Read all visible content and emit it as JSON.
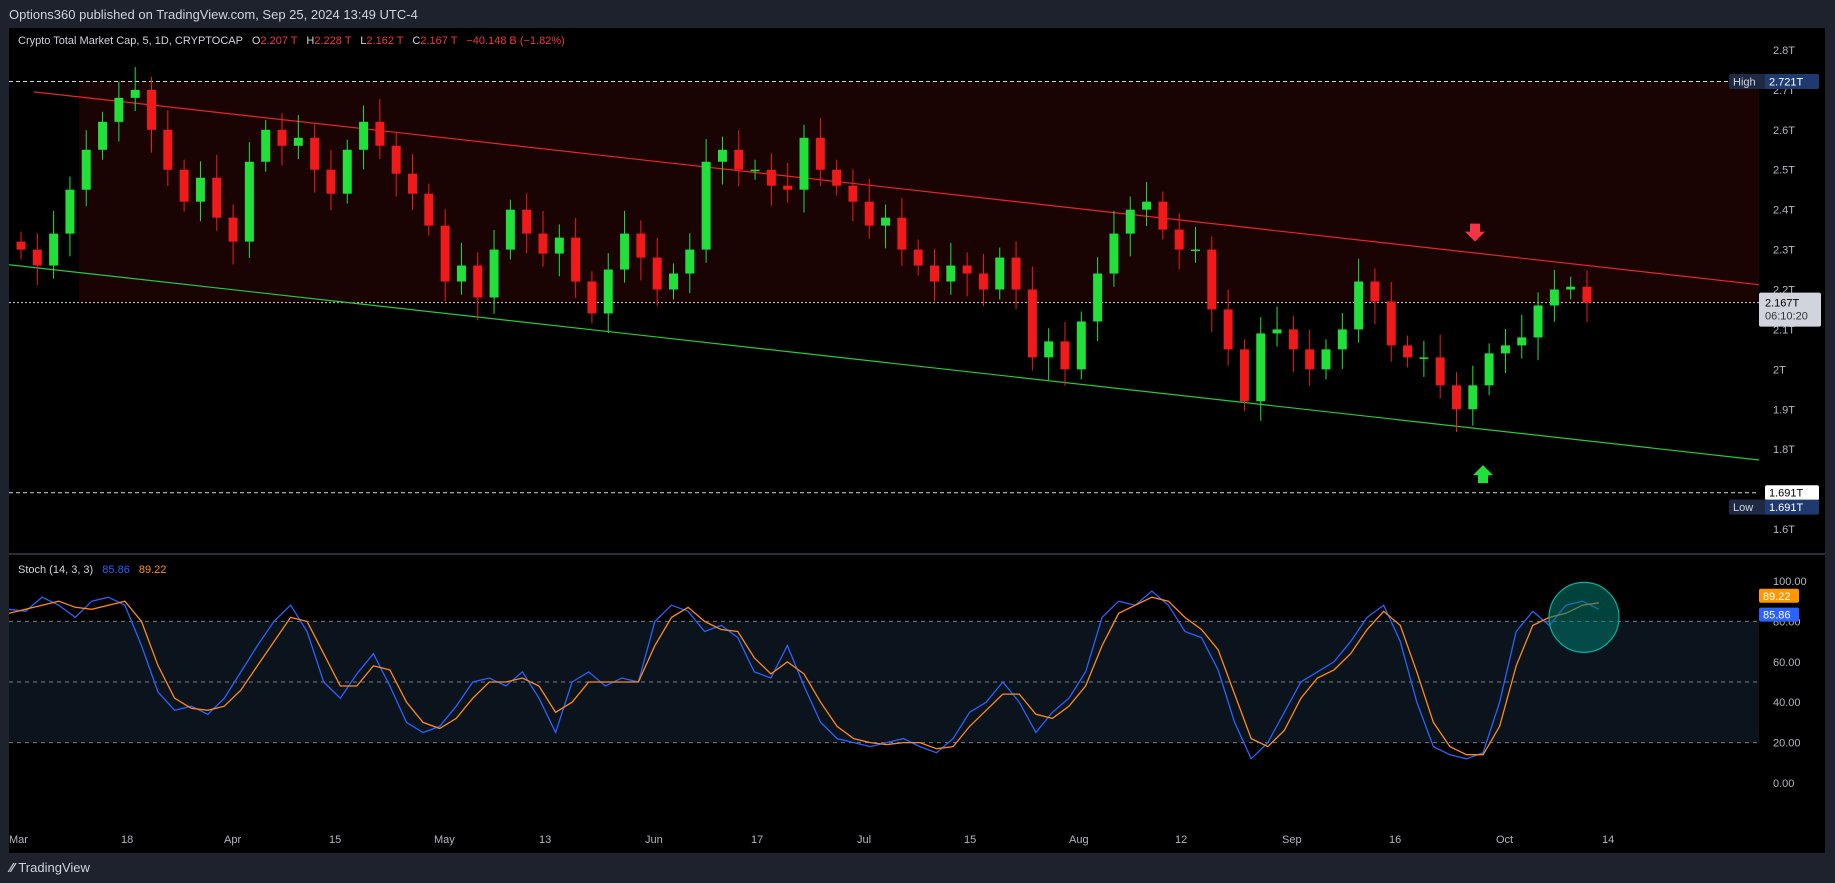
{
  "header": {
    "published": "Options360 published on TradingView.com, Sep 25, 2024 13:49 UTC-4"
  },
  "footer": {
    "brand": "TradingView"
  },
  "legend": {
    "symbol": "Crypto Total Market Cap, 5, 1D, CRYPTOCAP",
    "o_label": "O",
    "o_value": "2.207 T",
    "h_label": "H",
    "h_value": "2.228 T",
    "l_label": "L",
    "l_value": "2.162 T",
    "c_label": "C",
    "c_value": "2.167 T",
    "change": "−40.148 B (−1.82%)"
  },
  "stoch_legend": {
    "name": "Stoch (14, 3, 3)",
    "k": "85.86",
    "d": "89.22"
  },
  "colors": {
    "up": "#22e03a",
    "down": "#f01a1a",
    "channel_top": "#e8252b",
    "channel_bottom": "#27c93a",
    "k_line": "#2962ff",
    "d_line": "#ff8a1a",
    "zone": "#1a0303",
    "stoch_band": "#0b131c"
  },
  "chart_data": [
    {
      "type": "candlestick",
      "title": "Crypto Total Market Cap, 5, 1D, CRYPTOCAP",
      "y_unit": "T",
      "ylim": [
        1.55,
        2.85
      ],
      "y_ticks": [
        "1.6T",
        "1.7T",
        "1.8T",
        "1.9T",
        "2T",
        "2.1T",
        "2.2T",
        "2.3T",
        "2.4T",
        "2.5T",
        "2.6T",
        "2.7T",
        "2.8T"
      ],
      "x_ticks": [
        "Mar",
        "18",
        "Apr",
        "15",
        "May",
        "13",
        "Jun",
        "17",
        "Jul",
        "15",
        "Aug",
        "12",
        "Sep",
        "16",
        "Oct",
        "14"
      ],
      "high": {
        "label": "High",
        "value": "2.721T",
        "y": 2.721
      },
      "low": {
        "label": "Low",
        "value": "1.691T",
        "y": 1.691
      },
      "low_line_label": "1.691T",
      "last_price": {
        "value": "2.167T",
        "countdown": "06:10:20",
        "y": 2.167
      },
      "close_pivots": [
        2.3,
        2.26,
        2.34,
        2.45,
        2.55,
        2.62,
        2.68,
        2.7,
        2.6,
        2.5,
        2.42,
        2.48,
        2.38,
        2.32,
        2.52,
        2.6,
        2.56,
        2.58,
        2.5,
        2.44,
        2.55,
        2.62,
        2.56,
        2.49,
        2.44,
        2.36,
        2.22,
        2.26,
        2.18,
        2.3,
        2.4,
        2.34,
        2.29,
        2.33,
        2.22,
        2.14,
        2.25,
        2.34,
        2.28,
        2.2,
        2.24,
        2.3,
        2.52,
        2.55,
        2.5,
        2.5,
        2.46,
        2.45,
        2.58,
        2.5,
        2.46,
        2.42,
        2.36,
        2.38,
        2.3,
        2.26,
        2.22,
        2.26,
        2.24,
        2.2,
        2.28,
        2.2,
        2.03,
        2.07,
        2.0,
        2.12,
        2.24,
        2.34,
        2.4,
        2.42,
        2.35,
        2.3,
        2.3,
        2.15,
        2.05,
        1.92,
        2.09,
        2.1,
        2.05,
        2.0,
        2.05,
        2.1,
        2.22,
        2.17,
        2.06,
        2.03,
        2.03,
        1.96,
        1.9,
        1.96,
        2.04,
        2.06,
        2.08,
        2.16,
        2.2,
        2.207,
        2.167
      ],
      "channel_top": {
        "from": [
          0.0,
          2.695
        ],
        "to": [
          1.0,
          2.212
        ]
      },
      "channel_bottom": {
        "from": [
          0.0,
          2.262
        ],
        "to": [
          1.0,
          1.773
        ]
      },
      "arrows": [
        {
          "dir": "down",
          "y": 2.34
        },
        {
          "dir": "up",
          "y": 1.74
        }
      ]
    },
    {
      "type": "line",
      "title": "Stoch (14, 3, 3)",
      "ylim": [
        0,
        100
      ],
      "y_ticks": [
        "0.00",
        "20.00",
        "40.00",
        "60.00",
        "80.00",
        "100.00"
      ],
      "bands": [
        80,
        50,
        20
      ],
      "series": [
        {
          "name": "%K",
          "last": "85.86",
          "values": [
            86,
            85,
            92,
            88,
            82,
            90,
            92,
            88,
            68,
            45,
            36,
            38,
            34,
            42,
            55,
            68,
            80,
            88,
            75,
            50,
            42,
            54,
            64,
            48,
            30,
            25,
            28,
            38,
            50,
            52,
            48,
            55,
            42,
            25,
            50,
            55,
            48,
            52,
            50,
            80,
            88,
            85,
            75,
            78,
            72,
            55,
            52,
            68,
            48,
            30,
            22,
            20,
            18,
            20,
            22,
            18,
            15,
            22,
            35,
            40,
            50,
            40,
            25,
            35,
            42,
            55,
            82,
            90,
            88,
            95,
            88,
            75,
            72,
            56,
            30,
            12,
            20,
            35,
            50,
            55,
            60,
            70,
            82,
            88,
            70,
            40,
            18,
            14,
            12,
            15,
            40,
            75,
            85,
            78,
            88,
            90,
            86
          ]
        },
        {
          "name": "%D",
          "last": "89.22",
          "values": [
            84,
            86,
            88,
            90,
            87,
            86,
            88,
            90,
            80,
            58,
            42,
            37,
            36,
            38,
            46,
            58,
            70,
            82,
            80,
            64,
            48,
            48,
            58,
            56,
            40,
            30,
            27,
            32,
            42,
            50,
            50,
            52,
            48,
            35,
            40,
            50,
            50,
            50,
            50,
            68,
            82,
            87,
            80,
            76,
            75,
            62,
            54,
            60,
            54,
            40,
            28,
            22,
            20,
            19,
            20,
            20,
            17,
            18,
            28,
            36,
            44,
            44,
            34,
            32,
            38,
            48,
            68,
            84,
            88,
            92,
            90,
            82,
            76,
            66,
            44,
            22,
            18,
            26,
            42,
            52,
            56,
            64,
            76,
            85,
            78,
            55,
            30,
            18,
            14,
            14,
            28,
            58,
            78,
            82,
            84,
            88,
            89.22
          ]
        }
      ],
      "highlight_circle": {
        "x": 0.898,
        "y": 82
      }
    }
  ]
}
